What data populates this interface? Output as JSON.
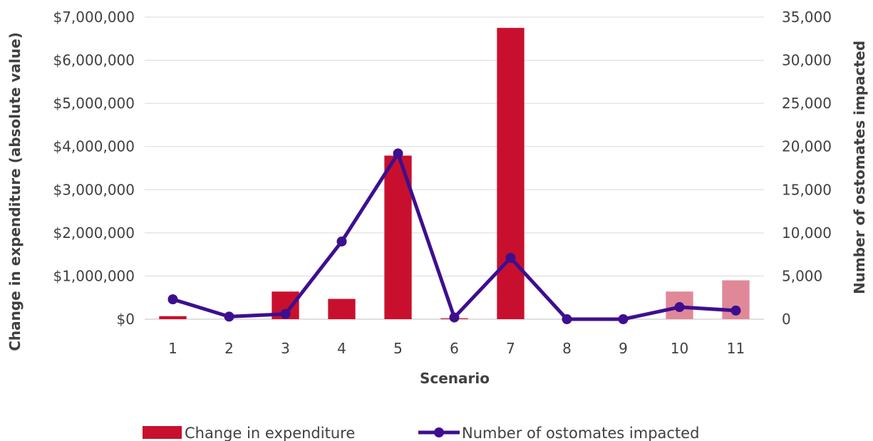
{
  "chart_data": {
    "type": "bar",
    "categories": [
      "1",
      "2",
      "3",
      "4",
      "5",
      "6",
      "7",
      "8",
      "9",
      "10",
      "11"
    ],
    "series": [
      {
        "name": "Change in expenditure",
        "type": "bar",
        "axis": "left",
        "values": [
          70000,
          0,
          640000,
          470000,
          3790000,
          20000,
          6750000,
          0,
          0,
          640000,
          900000
        ],
        "colors": [
          "#c8102e",
          "#c8102e",
          "#c8102e",
          "#c8102e",
          "#c8102e",
          "#c8102e",
          "#c8102e",
          "#c8102e",
          "#c8102e",
          "#e08898",
          "#e08898"
        ]
      },
      {
        "name": "Number of ostomates impacted",
        "type": "line",
        "axis": "right",
        "values": [
          2300,
          300,
          600,
          9000,
          19200,
          200,
          7100,
          0,
          0,
          1400,
          1000
        ],
        "color": "#3d0f8f"
      }
    ],
    "xlabel": "Scenario",
    "ylabel": "Change in expenditure (absolute value)",
    "y2label": "Number of ostomates impacted",
    "ylim": [
      0,
      7000000
    ],
    "y2lim": [
      0,
      35000
    ],
    "yticks": [
      "$0",
      "$1,000,000",
      "$2,000,000",
      "$3,000,000",
      "$4,000,000",
      "$5,000,000",
      "$6,000,000",
      "$7,000,000"
    ],
    "y2ticks": [
      "0",
      "5,000",
      "10,000",
      "15,000",
      "20,000",
      "25,000",
      "30,000",
      "35,000"
    ],
    "grid": true,
    "legend_position": "bottom",
    "legend": {
      "bar_label": "Change in expenditure",
      "line_label": "Number of ostomates impacted"
    }
  }
}
